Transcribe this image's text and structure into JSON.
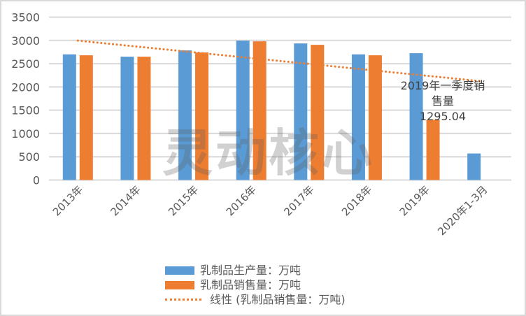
{
  "chart_data": {
    "type": "bar",
    "title": "",
    "xlabel": "",
    "ylabel": "",
    "ylim": [
      0,
      3500
    ],
    "yticks": [
      0,
      500,
      1000,
      1500,
      2000,
      2500,
      3000,
      3500
    ],
    "grid": true,
    "legend_position": "bottom",
    "categories": [
      "2013年",
      "2014年",
      "2015年",
      "2016年",
      "2017年",
      "2018年",
      "2019年",
      "2020年1-3月"
    ],
    "series": [
      {
        "name": "乳制品生产量：万吨",
        "type": "bar",
        "color": "#5B9BD5",
        "values": [
          2700,
          2650,
          2785,
          2995,
          2935,
          2700,
          2725,
          570
        ]
      },
      {
        "name": "乳制品销售量：万吨",
        "type": "bar",
        "color": "#ED7D31",
        "values": [
          2680,
          2650,
          2740,
          2980,
          2905,
          2680,
          1295.04,
          null
        ]
      },
      {
        "name": "线性 (乳制品销售量：万吨)",
        "type": "line",
        "style": "dotted",
        "color": "#ED7D31",
        "values": [
          2995,
          2870,
          2745,
          2620,
          2495,
          2370,
          2245,
          2120
        ]
      }
    ],
    "annotations": [
      {
        "category": "2019年",
        "series": "乳制品销售量：万吨",
        "lines": [
          "2019年一季度销",
          "售量",
          "1295.04"
        ]
      }
    ]
  },
  "watermark": "灵动核心",
  "legend": {
    "items": [
      {
        "label": "乳制品生产量：万吨",
        "color": "#5B9BD5",
        "kind": "bar"
      },
      {
        "label": "乳制品销售量：万吨",
        "color": "#ED7D31",
        "kind": "bar"
      },
      {
        "label": "线性 (乳制品销售量：万吨)",
        "color": "#ED7D31",
        "kind": "dotted-line"
      }
    ]
  }
}
